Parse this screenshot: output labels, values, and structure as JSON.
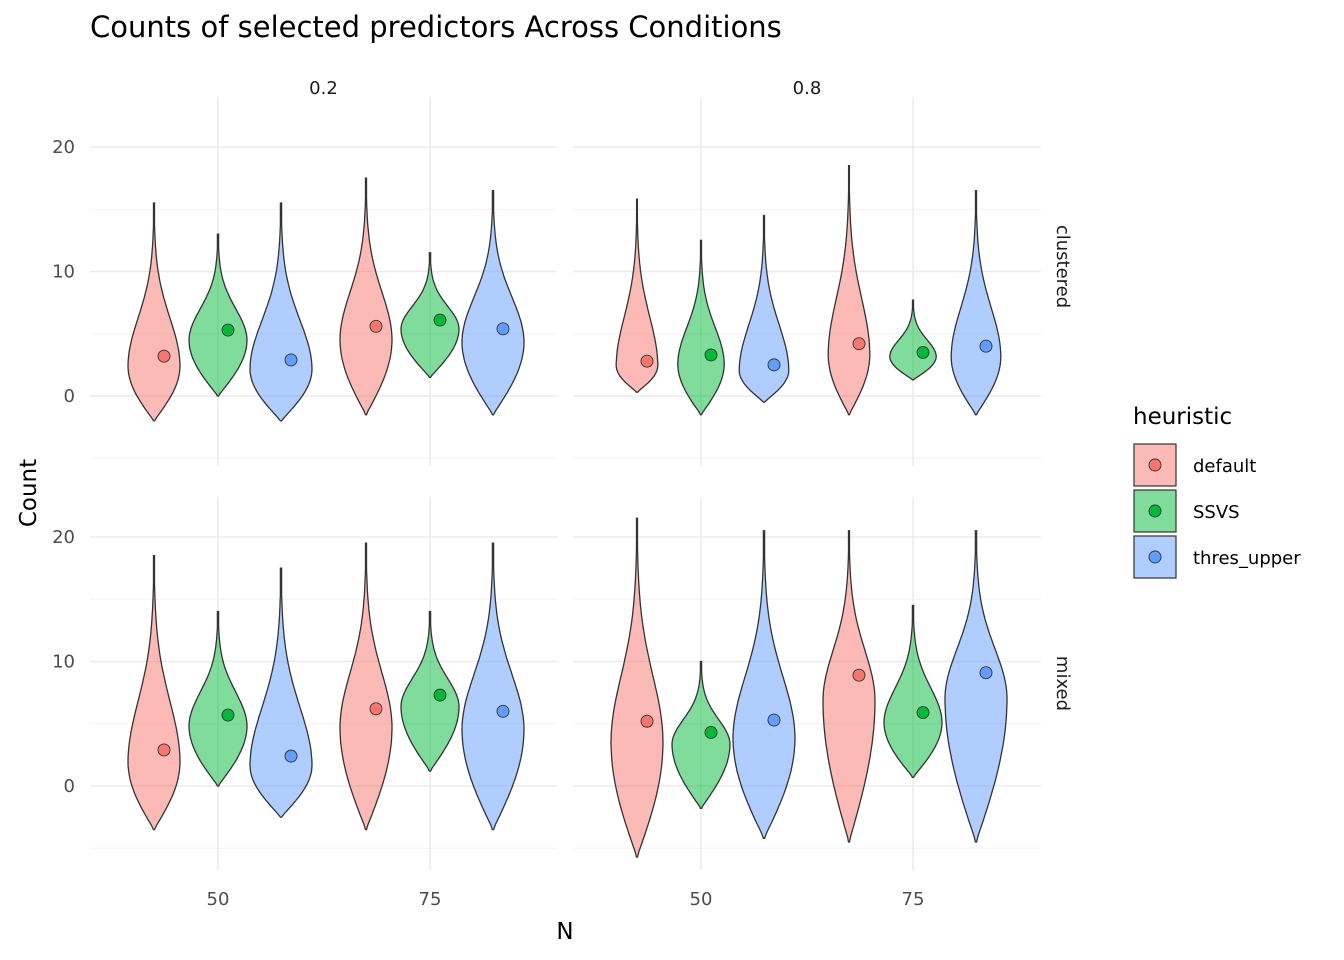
{
  "chart_data": {
    "type": "violin",
    "title": "Counts of selected predictors Across Conditions",
    "xlabel": "N",
    "ylabel": "Count",
    "x_ticks": [
      50,
      75
    ],
    "y_ticks": [
      0,
      10,
      20
    ],
    "ylim": [
      -6,
      24
    ],
    "facet_cols": [
      "0.2",
      "0.8"
    ],
    "facet_rows": [
      "clustered",
      "mixed"
    ],
    "legend": {
      "title": "heuristic",
      "position": "right",
      "items": [
        {
          "name": "default",
          "fill": "#F8766D"
        },
        {
          "name": "SSVS",
          "fill": "#00BA38"
        },
        {
          "name": "thres_upper",
          "fill": "#619CFF"
        }
      ]
    },
    "colors": {
      "default": "#F8766D",
      "SSVS": "#00BA38",
      "thres_upper": "#619CFF"
    },
    "panels": [
      {
        "col": "0.2",
        "row": "clustered",
        "series": [
          {
            "name": "default",
            "values": [
              {
                "N": 50,
                "mean": 3.2,
                "min": -2,
                "max": 15.5
              },
              {
                "N": 75,
                "mean": 5.6,
                "min": -1.5,
                "max": 17.5
              }
            ]
          },
          {
            "name": "SSVS",
            "values": [
              {
                "N": 50,
                "mean": 5.3,
                "min": 0,
                "max": 13
              },
              {
                "N": 75,
                "mean": 6.1,
                "min": 1.5,
                "max": 11.5
              }
            ]
          },
          {
            "name": "thres_upper",
            "values": [
              {
                "N": 50,
                "mean": 2.9,
                "min": -2,
                "max": 15.5
              },
              {
                "N": 75,
                "mean": 5.4,
                "min": -1.5,
                "max": 16.5
              }
            ]
          }
        ]
      },
      {
        "col": "0.8",
        "row": "clustered",
        "series": [
          {
            "name": "default",
            "values": [
              {
                "N": 50,
                "mean": 2.8,
                "min": 0.3,
                "max": 15.8
              },
              {
                "N": 75,
                "mean": 4.2,
                "min": -1.5,
                "max": 18.5
              }
            ]
          },
          {
            "name": "SSVS",
            "values": [
              {
                "N": 50,
                "mean": 3.3,
                "min": -1.5,
                "max": 12.5
              },
              {
                "N": 75,
                "mean": 3.5,
                "min": 1.3,
                "max": 7.7
              }
            ]
          },
          {
            "name": "thres_upper",
            "values": [
              {
                "N": 50,
                "mean": 2.5,
                "min": -0.5,
                "max": 14.5
              },
              {
                "N": 75,
                "mean": 4.0,
                "min": -1.5,
                "max": 16.5
              }
            ]
          }
        ]
      },
      {
        "col": "0.2",
        "row": "mixed",
        "series": [
          {
            "name": "default",
            "values": [
              {
                "N": 50,
                "mean": 2.9,
                "min": -3.5,
                "max": 18.5
              },
              {
                "N": 75,
                "mean": 6.2,
                "min": -3.5,
                "max": 19.5
              }
            ]
          },
          {
            "name": "SSVS",
            "values": [
              {
                "N": 50,
                "mean": 5.7,
                "min": 0,
                "max": 14
              },
              {
                "N": 75,
                "mean": 7.3,
                "min": 1.2,
                "max": 14
              }
            ]
          },
          {
            "name": "thres_upper",
            "values": [
              {
                "N": 50,
                "mean": 2.4,
                "min": -2.5,
                "max": 17.5
              },
              {
                "N": 75,
                "mean": 6.0,
                "min": -3.5,
                "max": 19.5
              }
            ]
          }
        ]
      },
      {
        "col": "0.8",
        "row": "mixed",
        "series": [
          {
            "name": "default",
            "values": [
              {
                "N": 50,
                "mean": 5.2,
                "min": -5.7,
                "max": 21.5
              },
              {
                "N": 75,
                "mean": 8.9,
                "min": -4.5,
                "max": 20.5
              }
            ]
          },
          {
            "name": "SSVS",
            "values": [
              {
                "N": 50,
                "mean": 4.3,
                "min": -1.8,
                "max": 10
              },
              {
                "N": 75,
                "mean": 5.9,
                "min": 0.7,
                "max": 14.5
              }
            ]
          },
          {
            "name": "thres_upper",
            "values": [
              {
                "N": 50,
                "mean": 5.3,
                "min": -4.2,
                "max": 20.5
              },
              {
                "N": 75,
                "mean": 9.1,
                "min": -4.5,
                "max": 20.5
              }
            ]
          }
        ]
      }
    ]
  }
}
